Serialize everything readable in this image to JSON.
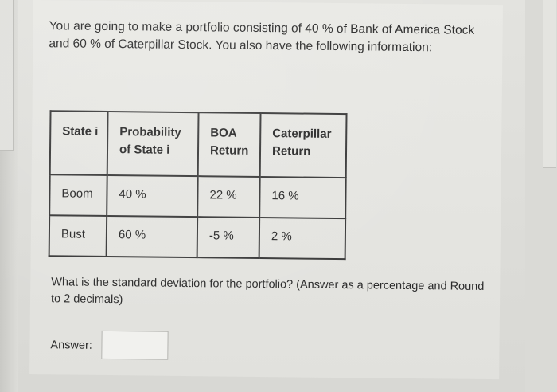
{
  "question": {
    "intro": "You are going to make a portfolio consisting of 40 % of Bank of America Stock and 60 % of Caterpillar Stock. You also have the following information:",
    "prompt": "What is the standard deviation for the portfolio? (Answer as a percentage and Round to 2 decimals)"
  },
  "table": {
    "headers": {
      "state": "State i",
      "probability": "Probability of State i",
      "boa": "BOA Return",
      "caterpillar": "Caterpillar Return"
    },
    "rows": [
      {
        "state": "Boom",
        "probability": "40 %",
        "boa": "22 %",
        "caterpillar": "16 %"
      },
      {
        "state": "Bust",
        "probability": "60 %",
        "boa": "-5 %",
        "caterpillar": "2 %"
      }
    ]
  },
  "answer": {
    "label": "Answer:",
    "value": ""
  }
}
